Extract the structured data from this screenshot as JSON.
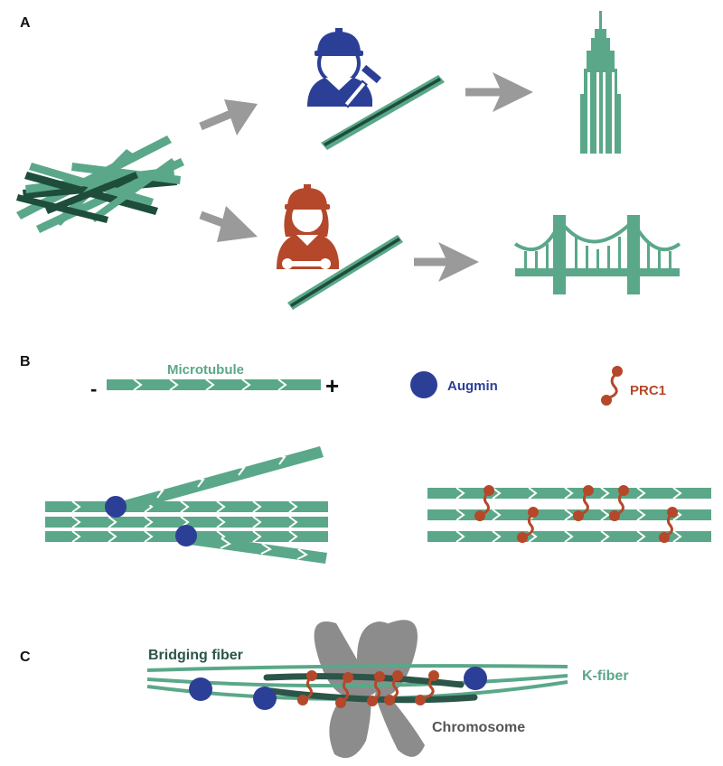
{
  "panels": {
    "a": {
      "letter": "A"
    },
    "b": {
      "letter": "B",
      "minus": "-",
      "plus": "+",
      "microtubule": "Microtubule",
      "augmin": "Augmin",
      "prc1": "PRC1"
    },
    "c": {
      "letter": "C",
      "bridging_fiber": "Bridging fiber",
      "k_fiber": "K-fiber",
      "chromosome": "Chromosome"
    }
  },
  "colors": {
    "microtubule": "#5aa889",
    "microtubule_dark": "#1e4d3c",
    "augmin": "#2c3f96",
    "prc1": "#b5482a",
    "arrow": "#9a9a9a",
    "chromosome": "#8c8c8c",
    "bridging_text": "#2b5548",
    "chromosome_text": "#555555"
  },
  "icons": [
    "worker-icon",
    "engineer-icon",
    "hammer-icon",
    "wrench-icon",
    "skyscraper-icon",
    "bridge-icon"
  ]
}
